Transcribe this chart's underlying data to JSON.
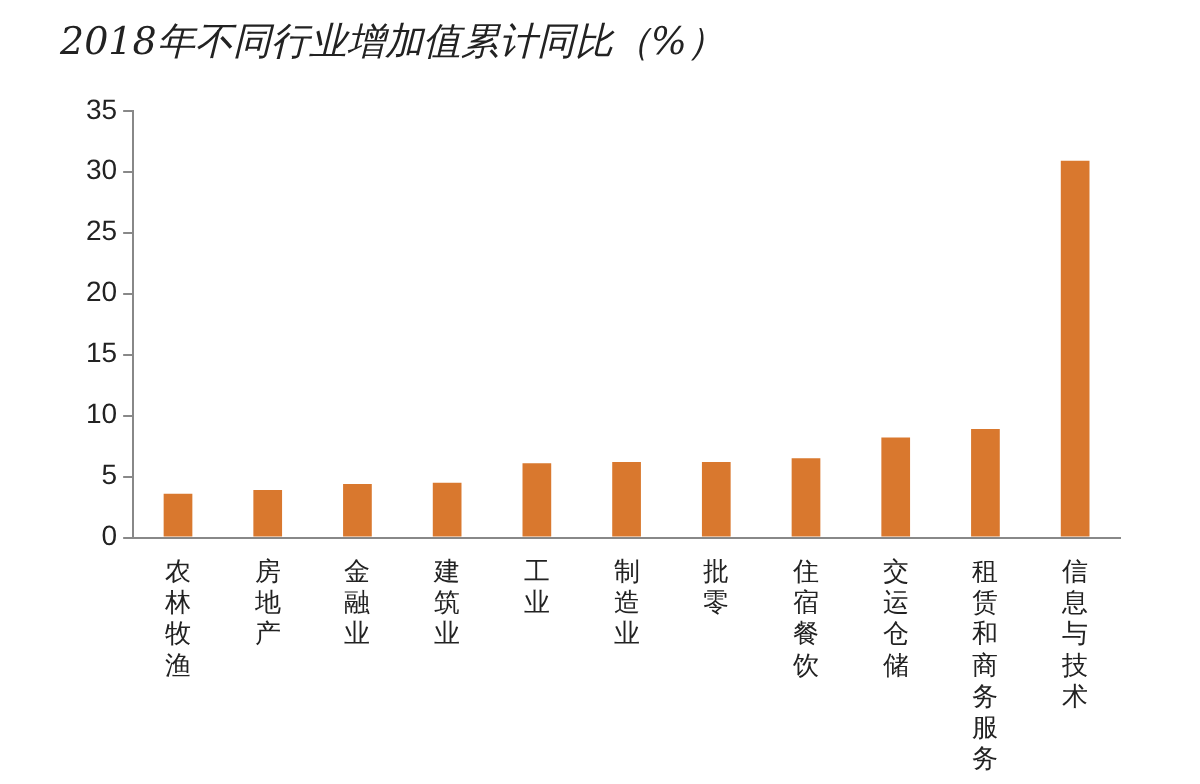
{
  "chart_data": {
    "type": "bar",
    "title": "2018年不同行业增加值累计同比（%）",
    "categories": [
      "农林牧渔",
      "房地产",
      "金融业",
      "建筑业",
      "工业",
      "制造业",
      "批零",
      "住宿餐饮",
      "交运仓储",
      "租赁和商务服务",
      "信息与技术"
    ],
    "values": [
      3.6,
      3.9,
      4.4,
      4.5,
      6.1,
      6.2,
      6.2,
      6.5,
      8.2,
      8.9,
      30.9
    ],
    "color": "#d9782e",
    "ylim": [
      0,
      35
    ],
    "yticks": [
      0,
      5,
      10,
      15,
      20,
      25,
      30,
      35
    ],
    "grid": false,
    "legend": false
  }
}
